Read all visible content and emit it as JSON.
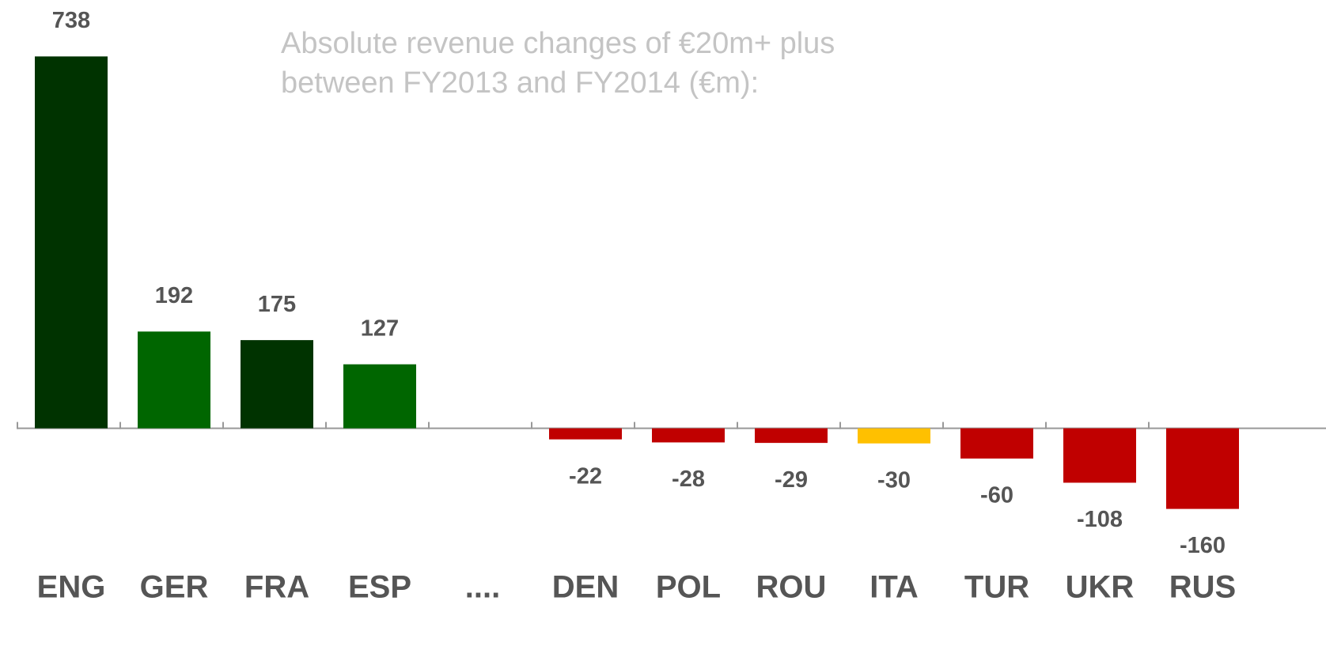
{
  "chart_data": {
    "type": "bar",
    "title": [
      "Absolute revenue changes of €20m+ plus",
      "between FY2013 and FY2014 (€m):"
    ],
    "categories": [
      "ENG",
      "GER",
      "FRA",
      "ESP",
      "....",
      "DEN",
      "POL",
      "ROU",
      "ITA",
      "TUR",
      "UKR",
      "RUS"
    ],
    "values": [
      738,
      192,
      175,
      127,
      null,
      -22,
      -28,
      -29,
      -30,
      -60,
      -108,
      -160
    ],
    "colors": [
      "#003300",
      "#006600",
      "#003300",
      "#006600",
      null,
      "#c00000",
      "#c00000",
      "#c00000",
      "#ffc000",
      "#c00000",
      "#c00000",
      "#c00000"
    ],
    "ylim": [
      -440,
      850
    ]
  }
}
